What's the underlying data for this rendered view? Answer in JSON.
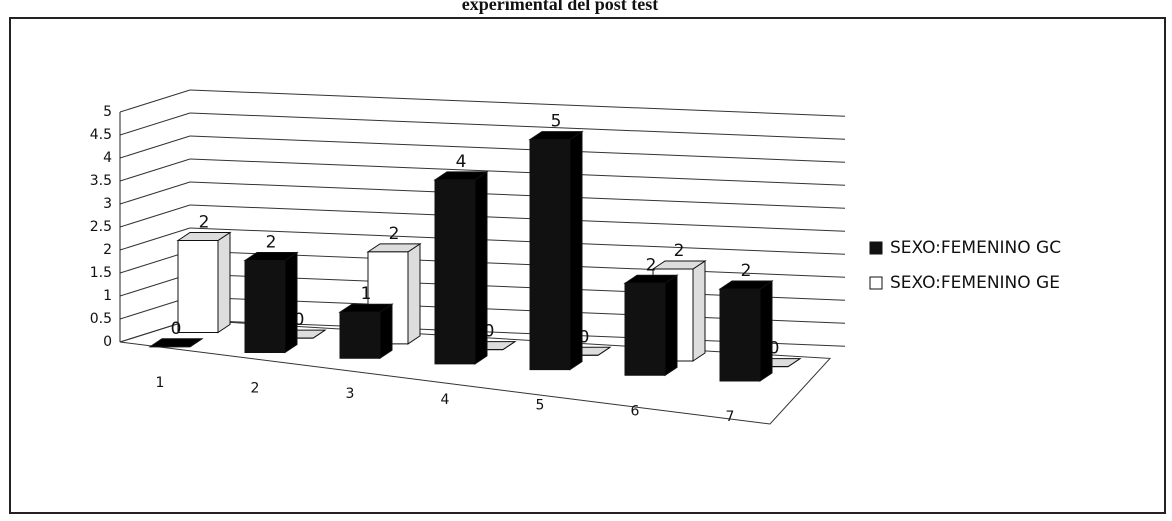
{
  "chart_data": {
    "type": "bar3d",
    "title": "experimental del post test",
    "categories": [
      "1",
      "2",
      "3",
      "4",
      "5",
      "6",
      "7"
    ],
    "series": [
      {
        "name": "SEXO:FEMENINO GC",
        "color": "#111111",
        "values": [
          0,
          2,
          1,
          4,
          5,
          2,
          2
        ]
      },
      {
        "name": "SEXO:FEMENINO GE",
        "color": "#ffffff",
        "values": [
          2,
          0,
          2,
          0,
          0,
          2,
          0
        ]
      }
    ],
    "ylim": [
      0,
      5
    ],
    "yticks": [
      0,
      0.5,
      1,
      1.5,
      2,
      2.5,
      3,
      3.5,
      4,
      4.5,
      5
    ],
    "grid": true,
    "legend": "right"
  }
}
